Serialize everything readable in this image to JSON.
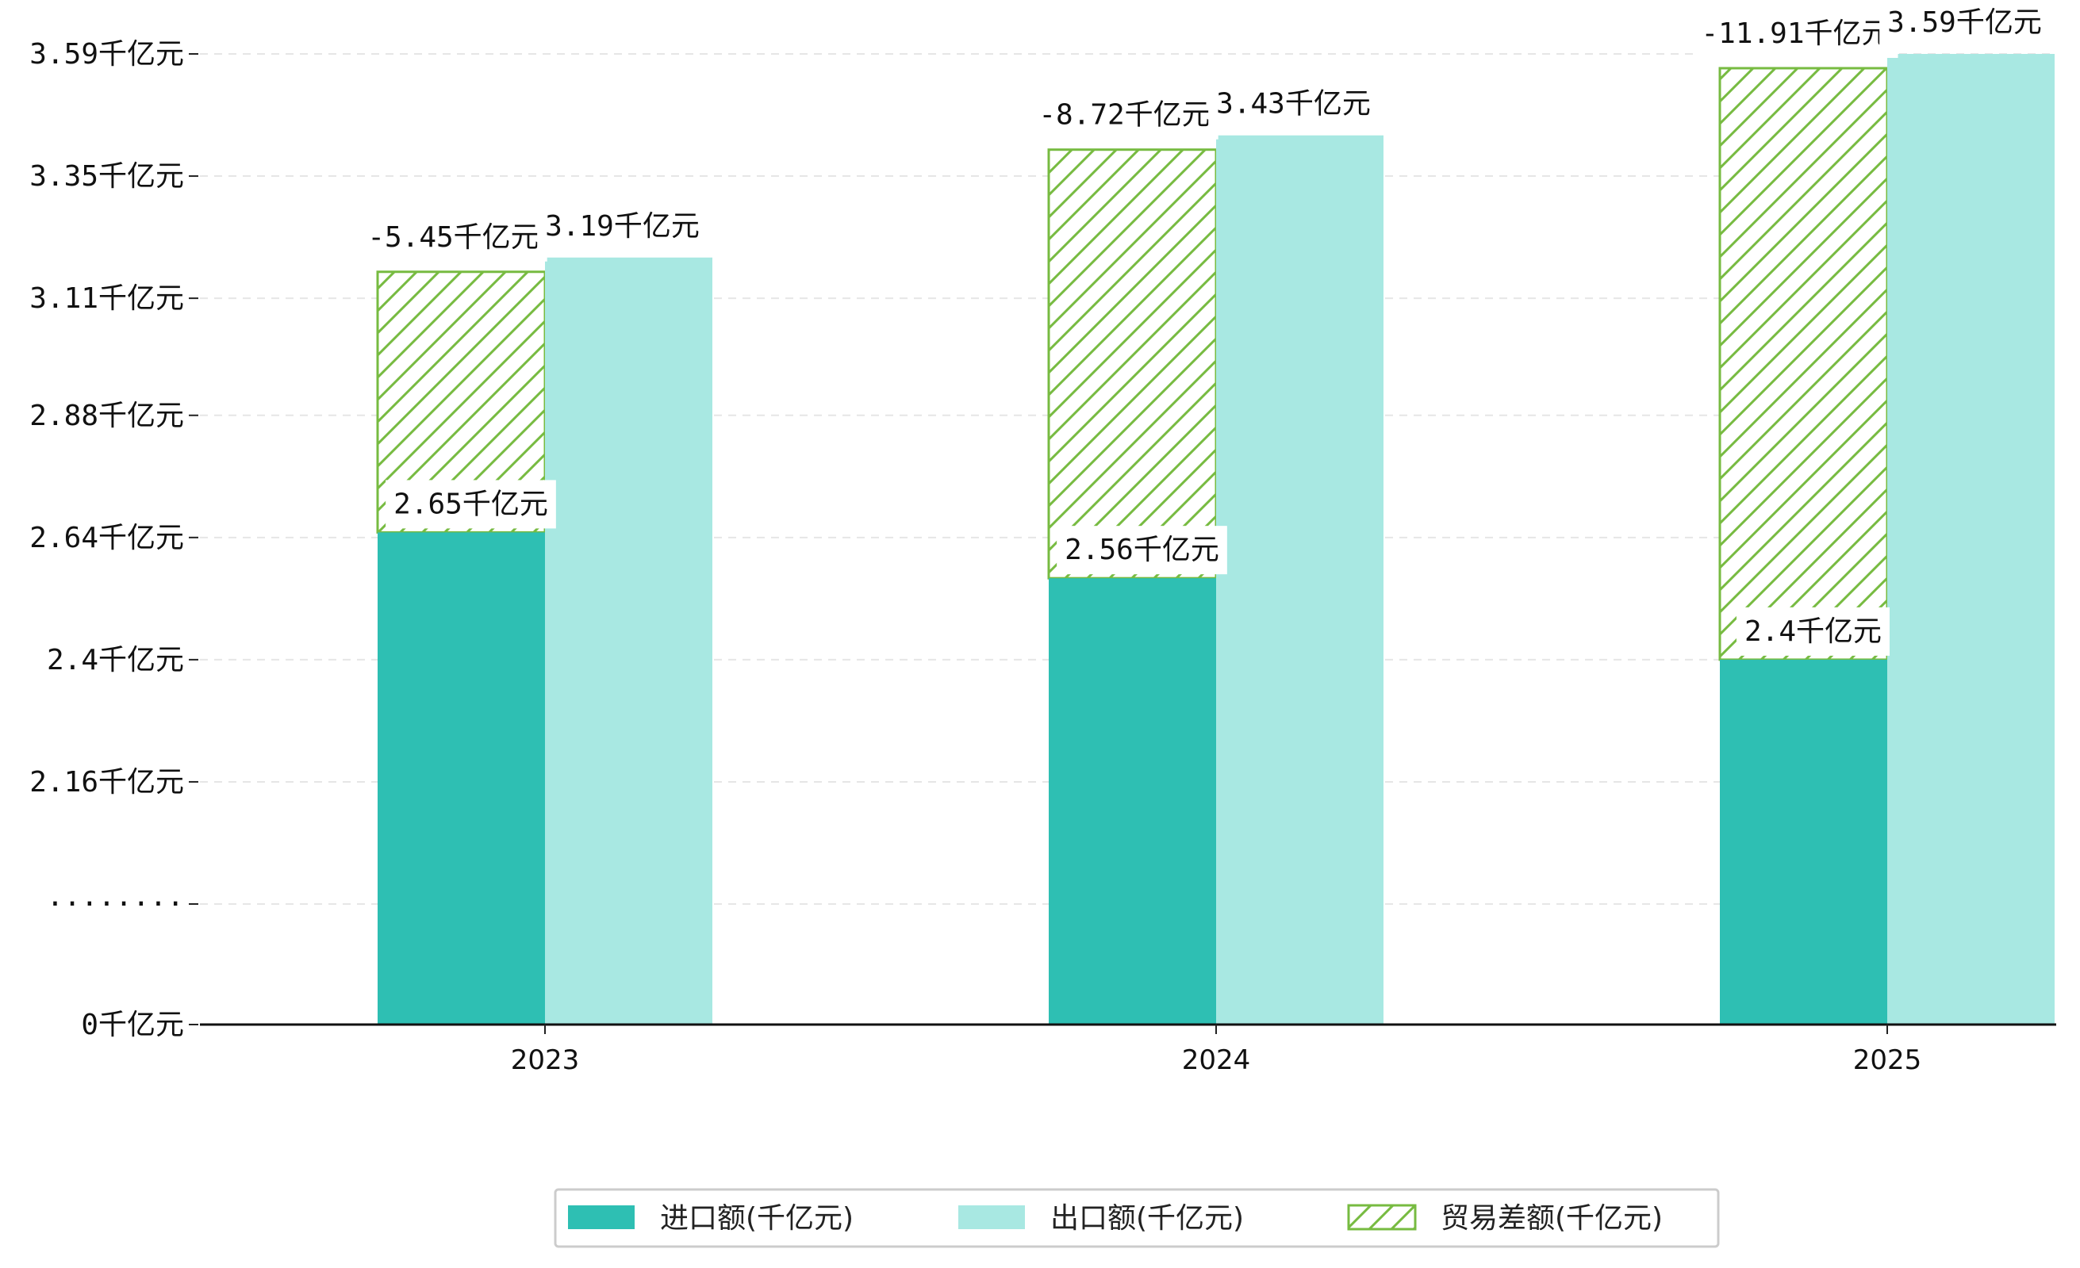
{
  "chart_data": {
    "type": "bar",
    "categories": [
      "2023",
      "2024",
      "2025"
    ],
    "series": [
      {
        "name": "进口额(千亿元)",
        "values": [
          2.65,
          2.56,
          2.4
        ],
        "color": "#2ebfb3",
        "labels": [
          "2.65千亿元",
          "2.56千亿元",
          "2.4千亿元"
        ]
      },
      {
        "name": "出口额(千亿元)",
        "values": [
          3.19,
          3.43,
          3.59
        ],
        "color": "#a8e8e2",
        "labels": [
          "3.19千亿元",
          "3.43千亿元",
          "3.59千亿元"
        ]
      },
      {
        "name": "贸易差额(千亿元)",
        "values": [
          -5.45,
          -8.72,
          -11.91
        ],
        "color": "#77bb41",
        "pattern": "hatch",
        "labels": [
          "-5.45千亿元",
          "-8.72千亿元",
          "-11.91千亿元"
        ]
      }
    ],
    "yticks": [
      {
        "value": 0,
        "label": "0千亿元"
      },
      {
        "value": 1.92,
        "label": "········"
      },
      {
        "value": 2.16,
        "label": "2.16千亿元"
      },
      {
        "value": 2.4,
        "label": "2.4千亿元"
      },
      {
        "value": 2.64,
        "label": "2.64千亿元"
      },
      {
        "value": 2.88,
        "label": "2.88千亿元"
      },
      {
        "value": 3.11,
        "label": "3.11千亿元"
      },
      {
        "value": 3.35,
        "label": "3.35千亿元"
      },
      {
        "value": 3.59,
        "label": "3.59千亿元"
      }
    ],
    "y_axis_break": true,
    "grid": true,
    "legend_position": "bottom-center",
    "title": "",
    "xlabel": "",
    "ylabel": ""
  }
}
